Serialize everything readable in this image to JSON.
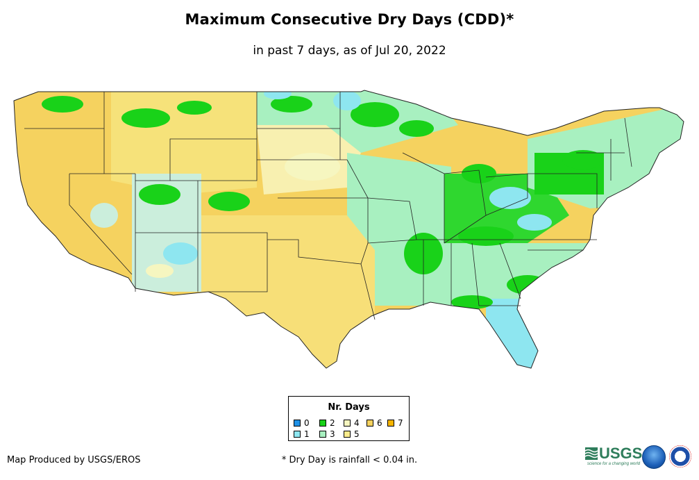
{
  "title": "Maximum Consecutive Dry Days (CDD)*",
  "subtitle": "in past 7 days, as of Jul 20, 2022",
  "legend": {
    "title": "Nr. Days",
    "items": [
      {
        "label": "0",
        "color": "#1e90e6"
      },
      {
        "label": "1",
        "color": "#8ee6f0"
      },
      {
        "label": "2",
        "color": "#19d219"
      },
      {
        "label": "3",
        "color": "#a8f0c0"
      },
      {
        "label": "4",
        "color": "#f6f6c0"
      },
      {
        "label": "5",
        "color": "#faeb8c"
      },
      {
        "label": "6",
        "color": "#f5d25f"
      },
      {
        "label": "7",
        "color": "#f5b400"
      }
    ]
  },
  "credit": "Map Produced by USGS/EROS",
  "footnote": "* Dry Day is rainfall < 0.04 in.",
  "logos": {
    "usgs": "USGS",
    "usgs_tagline": "science for a changing world",
    "noaa": "noaa-logo",
    "nws": "nws-logo"
  }
}
